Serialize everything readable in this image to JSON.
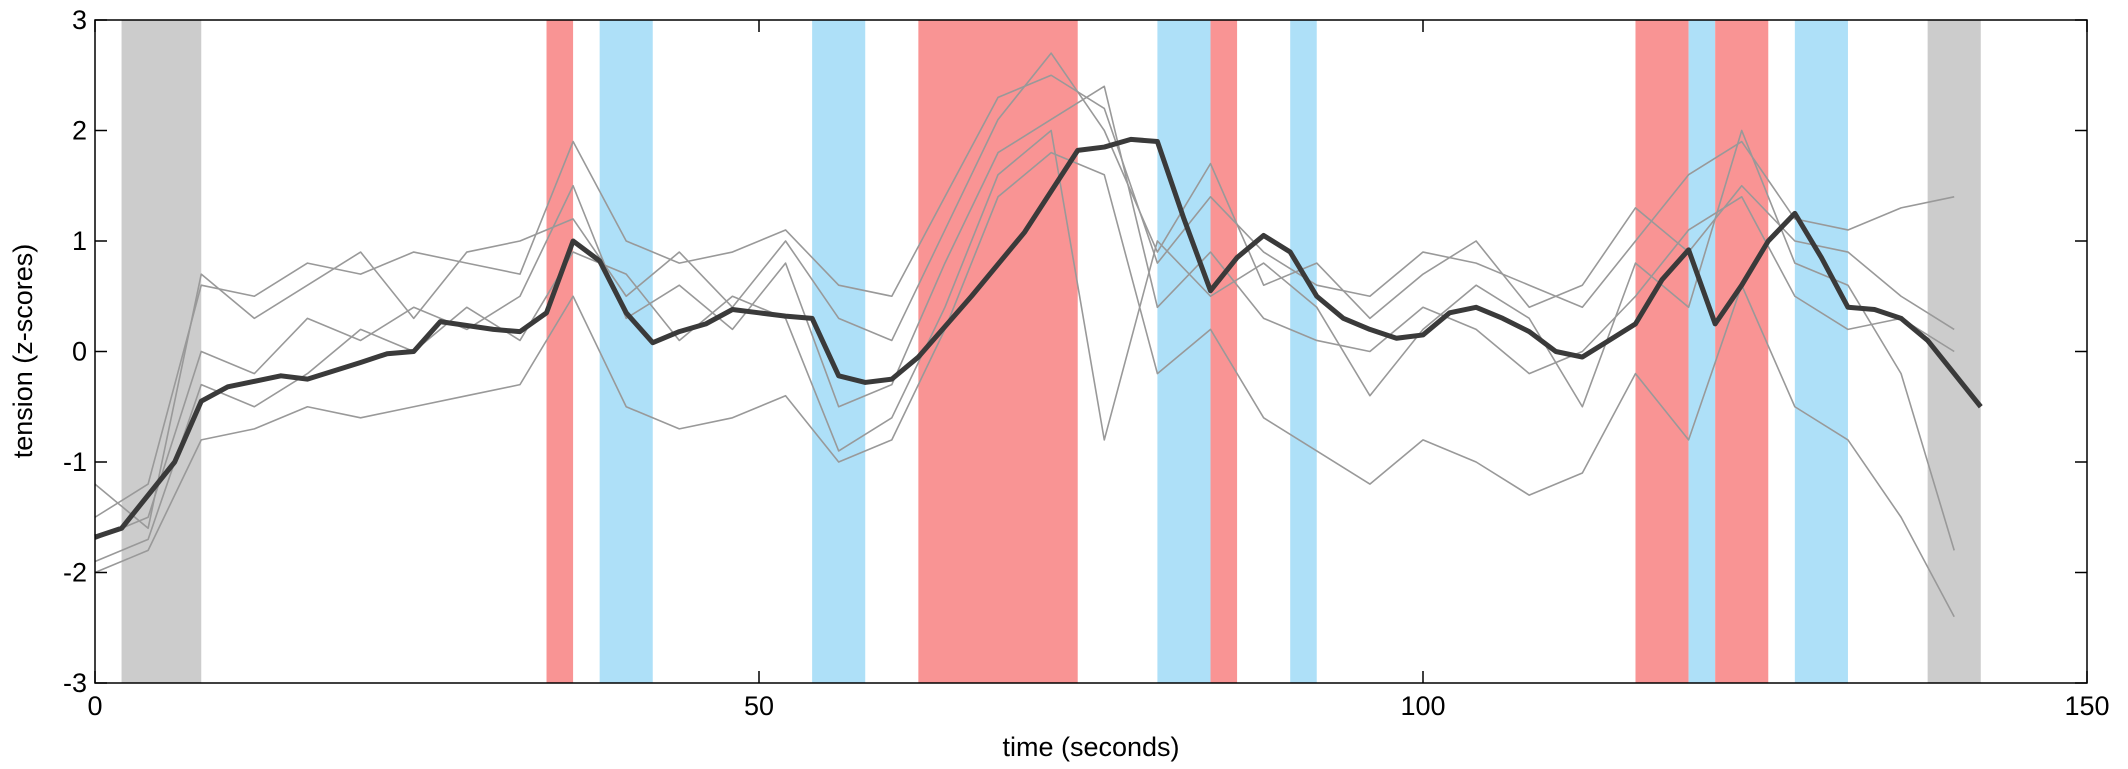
{
  "chart_data": {
    "type": "line",
    "xlabel": "time (seconds)",
    "ylabel": "tension (z-scores)",
    "xlim": [
      0,
      150
    ],
    "ylim": [
      -3,
      3
    ],
    "xticks": [
      0,
      50,
      100,
      150
    ],
    "yticks": [
      -3,
      -2,
      -1,
      0,
      1,
      2,
      3
    ],
    "bands": [
      {
        "x": [
          2,
          8
        ],
        "color": "#cccccc"
      },
      {
        "x": [
          34,
          36
        ],
        "color": "#f99494"
      },
      {
        "x": [
          38,
          42
        ],
        "color": "#aee0f8"
      },
      {
        "x": [
          54,
          58
        ],
        "color": "#aee0f8"
      },
      {
        "x": [
          62,
          74
        ],
        "color": "#f99494"
      },
      {
        "x": [
          80,
          84
        ],
        "color": "#aee0f8"
      },
      {
        "x": [
          84,
          86
        ],
        "color": "#f99494"
      },
      {
        "x": [
          90,
          92
        ],
        "color": "#aee0f8"
      },
      {
        "x": [
          116,
          120
        ],
        "color": "#f99494"
      },
      {
        "x": [
          120,
          122
        ],
        "color": "#aee0f8"
      },
      {
        "x": [
          122,
          126
        ],
        "color": "#f99494"
      },
      {
        "x": [
          128,
          132
        ],
        "color": "#aee0f8"
      },
      {
        "x": [
          138,
          142
        ],
        "color": "#cccccc"
      }
    ],
    "series": [
      {
        "color": "#999999",
        "width": 1.6,
        "x": [
          0,
          4,
          8,
          12,
          16,
          20,
          24,
          28,
          32,
          36,
          40,
          44,
          48,
          52,
          56,
          60,
          64,
          68,
          72,
          76,
          80,
          84,
          88,
          92,
          96,
          100,
          104,
          108,
          112,
          116,
          120,
          124,
          128,
          132,
          136,
          140
        ],
        "values": [
          -1.5,
          -1.2,
          0.6,
          0.5,
          0.8,
          0.7,
          0.9,
          0.8,
          0.7,
          1.9,
          1.0,
          0.8,
          0.9,
          1.1,
          0.6,
          0.5,
          1.4,
          2.3,
          2.5,
          2.2,
          0.8,
          1.4,
          0.9,
          0.6,
          0.5,
          0.9,
          0.8,
          0.6,
          0.4,
          1.0,
          1.6,
          1.9,
          1.2,
          1.1,
          1.3,
          1.4
        ]
      },
      {
        "color": "#999999",
        "width": 1.6,
        "x": [
          0,
          4,
          8,
          12,
          16,
          20,
          24,
          28,
          32,
          36,
          40,
          44,
          48,
          52,
          56,
          60,
          64,
          68,
          72,
          76,
          80,
          84,
          88,
          92,
          96,
          100,
          104,
          108,
          112,
          116,
          120,
          124,
          128,
          132,
          136,
          140
        ],
        "values": [
          -2.0,
          -1.8,
          -0.8,
          -0.7,
          -0.5,
          -0.6,
          -0.5,
          -0.4,
          -0.3,
          0.5,
          -0.5,
          -0.7,
          -0.6,
          -0.4,
          -1.0,
          -0.8,
          0.2,
          1.4,
          1.8,
          1.6,
          -0.2,
          0.2,
          -0.6,
          -0.9,
          -1.2,
          -0.8,
          -1.0,
          -1.3,
          -1.1,
          -0.2,
          -0.8,
          0.6,
          -0.5,
          -0.8,
          -1.5,
          -2.4
        ]
      },
      {
        "color": "#999999",
        "width": 1.6,
        "x": [
          0,
          4,
          8,
          12,
          16,
          20,
          24,
          28,
          32,
          36,
          40,
          44,
          48,
          52,
          56,
          60,
          64,
          68,
          72,
          76,
          80,
          84,
          88,
          92,
          96,
          100,
          104,
          108,
          112,
          116,
          120,
          124,
          128,
          132,
          136,
          140
        ],
        "values": [
          -1.7,
          -1.5,
          0.0,
          -0.2,
          0.3,
          0.1,
          0.4,
          0.2,
          0.5,
          1.5,
          0.3,
          0.6,
          0.2,
          0.8,
          -0.5,
          -0.3,
          0.8,
          1.8,
          2.1,
          2.4,
          0.4,
          0.9,
          0.3,
          0.1,
          0.0,
          0.4,
          0.2,
          -0.2,
          0.0,
          0.5,
          1.1,
          1.4,
          0.5,
          0.2,
          0.3,
          0.0
        ]
      },
      {
        "color": "#999999",
        "width": 1.6,
        "x": [
          0,
          4,
          8,
          12,
          16,
          20,
          24,
          28,
          32,
          36,
          40,
          44,
          48,
          52,
          56,
          60,
          64,
          68,
          72,
          76,
          80,
          84,
          88,
          92,
          96,
          100,
          104,
          108,
          112,
          116,
          120,
          124,
          128,
          132,
          136,
          140
        ],
        "values": [
          -1.9,
          -1.7,
          -0.3,
          -0.5,
          -0.2,
          0.2,
          0.0,
          0.4,
          0.1,
          0.9,
          0.7,
          0.1,
          0.5,
          0.3,
          -0.9,
          -0.6,
          0.4,
          1.6,
          2.0,
          -0.8,
          1.0,
          0.5,
          0.8,
          0.4,
          -0.4,
          0.2,
          0.6,
          0.3,
          -0.5,
          0.8,
          0.4,
          2.0,
          0.8,
          0.6,
          -0.2,
          -1.8
        ]
      },
      {
        "color": "#999999",
        "width": 1.6,
        "x": [
          0,
          4,
          8,
          12,
          16,
          20,
          24,
          28,
          32,
          36,
          40,
          44,
          48,
          52,
          56,
          60,
          64,
          68,
          72,
          76,
          80,
          84,
          88,
          92,
          96,
          100,
          104,
          108,
          112,
          116,
          120,
          124,
          128,
          132,
          136,
          140
        ],
        "values": [
          -1.2,
          -1.6,
          0.7,
          0.3,
          0.6,
          0.9,
          0.3,
          0.9,
          1.0,
          1.2,
          0.5,
          0.9,
          0.4,
          1.0,
          0.3,
          0.1,
          1.1,
          2.1,
          2.7,
          2.0,
          0.9,
          1.7,
          0.6,
          0.8,
          0.3,
          0.7,
          1.0,
          0.4,
          0.6,
          1.3,
          0.9,
          1.5,
          1.0,
          0.9,
          0.5,
          0.2
        ]
      },
      {
        "color": "#3a3a3a",
        "width": 5,
        "x": [
          0,
          2,
          6,
          8,
          10,
          14,
          16,
          20,
          22,
          24,
          26,
          30,
          32,
          34,
          36,
          38,
          40,
          42,
          44,
          46,
          48,
          50,
          52,
          54,
          56,
          58,
          60,
          62,
          66,
          70,
          72,
          74,
          76,
          78,
          80,
          82,
          84,
          86,
          88,
          90,
          92,
          94,
          96,
          98,
          100,
          102,
          104,
          106,
          108,
          110,
          112,
          114,
          116,
          118,
          120,
          122,
          124,
          126,
          128,
          130,
          132,
          134,
          136,
          138,
          140,
          142
        ],
        "values": [
          -1.68,
          -1.6,
          -1.0,
          -0.45,
          -0.32,
          -0.22,
          -0.25,
          -0.1,
          -0.02,
          0.0,
          0.27,
          0.2,
          0.18,
          0.35,
          1.0,
          0.82,
          0.35,
          0.08,
          0.18,
          0.25,
          0.38,
          0.35,
          0.32,
          0.3,
          -0.22,
          -0.28,
          -0.25,
          -0.05,
          0.5,
          1.08,
          1.45,
          1.82,
          1.85,
          1.92,
          1.9,
          1.2,
          0.55,
          0.85,
          1.05,
          0.9,
          0.5,
          0.3,
          0.2,
          0.12,
          0.15,
          0.35,
          0.4,
          0.3,
          0.18,
          0.0,
          -0.05,
          0.1,
          0.25,
          0.65,
          0.92,
          0.25,
          0.6,
          1.0,
          1.25,
          0.85,
          0.4,
          0.38,
          0.3,
          0.1,
          -0.2,
          -0.5
        ]
      }
    ]
  }
}
